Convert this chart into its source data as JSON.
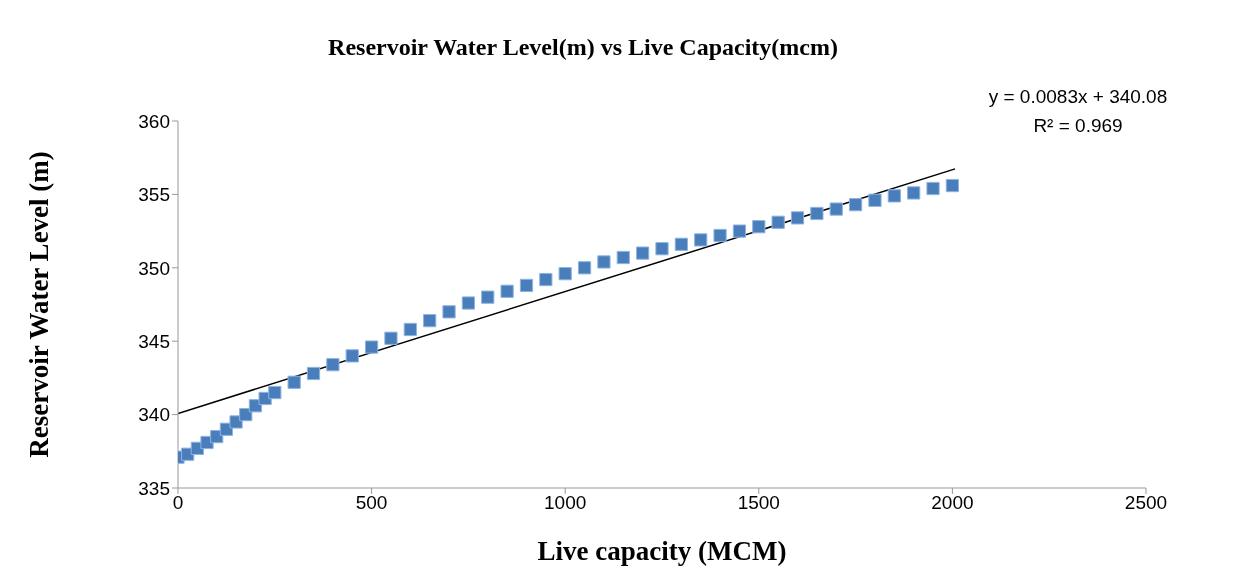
{
  "chart_data": {
    "type": "scatter",
    "title": "Reservoir Water Level(m) vs  Live Capacity(mcm)",
    "xlabel": "Live capacity (MCM)",
    "ylabel": "Reservoir Water  Level (m)",
    "annotations": [
      "y = 0.0083x + 340.08",
      "R² = 0.969"
    ],
    "xlim": [
      0,
      2500
    ],
    "xticks": [
      0,
      500,
      1000,
      1500,
      2000,
      2500
    ],
    "ylim": [
      335,
      360
    ],
    "yticks": [
      335,
      340,
      345,
      350,
      355,
      360
    ],
    "grid": false,
    "marker": "square",
    "series": [
      {
        "color": "#4a7ebb",
        "x": [
          0,
          25,
          50,
          75,
          100,
          125,
          150,
          175,
          200,
          225,
          250,
          300,
          350,
          400,
          450,
          500,
          550,
          600,
          650,
          700,
          750,
          800,
          850,
          900,
          950,
          1000,
          1050,
          1100,
          1150,
          1200,
          1250,
          1300,
          1350,
          1400,
          1450,
          1500,
          1550,
          1600,
          1650,
          1700,
          1750,
          1800,
          1850,
          1900,
          1950,
          2000
        ],
        "values": [
          337.1,
          337.3,
          337.7,
          338.1,
          338.5,
          339.0,
          339.5,
          340.0,
          340.6,
          341.1,
          341.5,
          342.2,
          342.8,
          343.4,
          344.0,
          344.6,
          345.2,
          345.8,
          346.4,
          347.0,
          347.6,
          348.0,
          348.4,
          348.8,
          349.2,
          349.6,
          350.0,
          350.4,
          350.7,
          351.0,
          351.3,
          351.6,
          351.9,
          352.2,
          352.5,
          352.8,
          353.1,
          353.4,
          353.7,
          354.0,
          354.3,
          354.6,
          354.9,
          355.1,
          355.4,
          355.6
        ]
      },
      {
        "type": "line",
        "color": "#000000",
        "marker": "none",
        "x": [
          0,
          2007
        ],
        "values": [
          340.08,
          356.74
        ]
      }
    ]
  }
}
